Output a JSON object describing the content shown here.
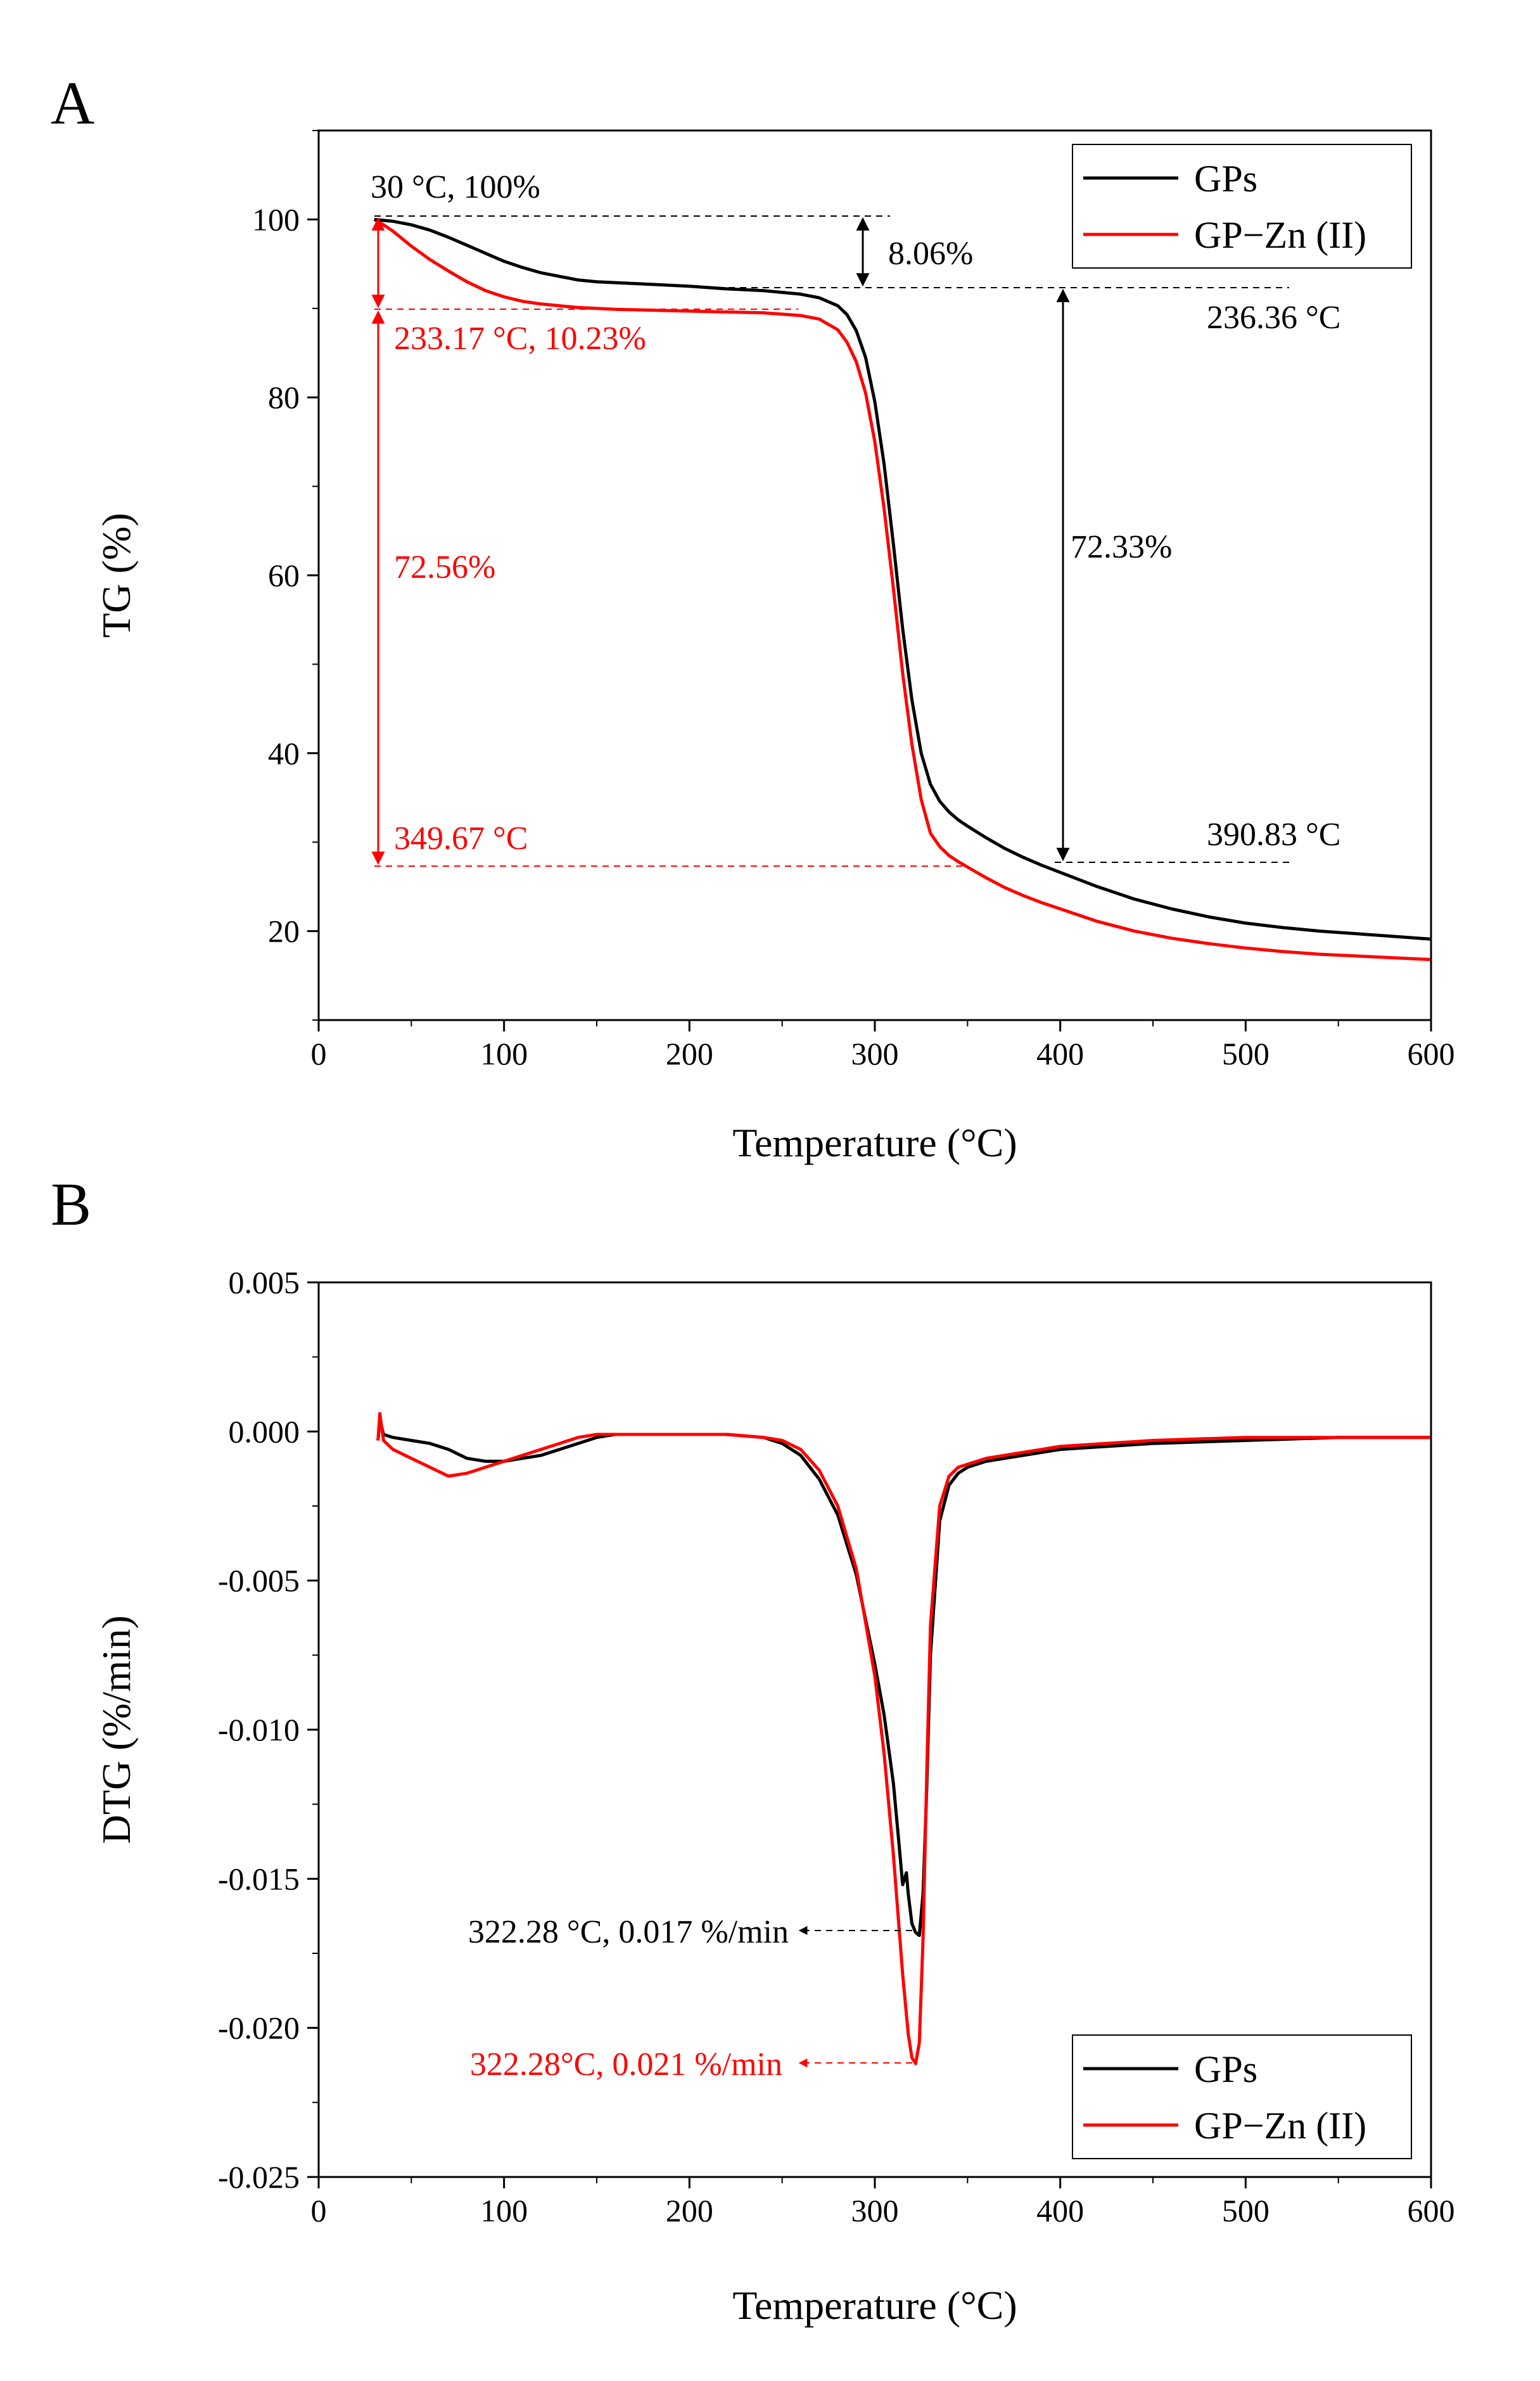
{
  "colors": {
    "gps": "#000000",
    "gpzn": "#ff0000"
  },
  "chart_data": [
    {
      "type": "line",
      "panel_label": "A",
      "xlabel": "Temperature (°C)",
      "ylabel": "TG (%)",
      "xlim": [
        0,
        600
      ],
      "ylim": [
        10,
        110
      ],
      "xticks": [
        0,
        100,
        200,
        300,
        400,
        500,
        600
      ],
      "yticks": [
        20,
        40,
        60,
        80,
        100
      ],
      "legend": {
        "position": "top-right",
        "entries": [
          "GPs",
          "GP−Zn (II)"
        ]
      },
      "series": [
        {
          "name": "GPs",
          "color": "#000000",
          "x": [
            30,
            40,
            50,
            60,
            70,
            80,
            90,
            100,
            110,
            120,
            130,
            140,
            150,
            160,
            180,
            200,
            220,
            240,
            260,
            270,
            280,
            285,
            290,
            295,
            300,
            305,
            310,
            315,
            320,
            325,
            330,
            335,
            340,
            345,
            350,
            360,
            370,
            380,
            390,
            400,
            420,
            440,
            460,
            480,
            500,
            520,
            540,
            560,
            580,
            600
          ],
          "y": [
            100,
            99.8,
            99.4,
            98.8,
            98.0,
            97.1,
            96.2,
            95.3,
            94.6,
            94.0,
            93.6,
            93.2,
            93.0,
            92.9,
            92.7,
            92.5,
            92.2,
            92.0,
            91.6,
            91.2,
            90.3,
            89.3,
            87.5,
            84.5,
            79.5,
            72.5,
            63.5,
            54.0,
            46.0,
            40.0,
            36.5,
            34.6,
            33.4,
            32.5,
            31.8,
            30.5,
            29.3,
            28.3,
            27.4,
            26.6,
            25.0,
            23.6,
            22.5,
            21.6,
            20.9,
            20.4,
            20.0,
            19.7,
            19.4,
            19.1
          ]
        },
        {
          "name": "GP−Zn (II)",
          "color": "#ff0000",
          "x": [
            30,
            35,
            40,
            50,
            60,
            70,
            80,
            90,
            100,
            110,
            120,
            130,
            140,
            150,
            160,
            180,
            200,
            220,
            240,
            260,
            270,
            280,
            285,
            290,
            295,
            300,
            305,
            310,
            315,
            320,
            325,
            330,
            335,
            340,
            345,
            350,
            360,
            370,
            380,
            390,
            400,
            420,
            440,
            460,
            480,
            500,
            520,
            540,
            560,
            580,
            600
          ],
          "y": [
            100,
            99.4,
            98.7,
            97.0,
            95.5,
            94.2,
            93.0,
            92.0,
            91.3,
            90.8,
            90.5,
            90.3,
            90.1,
            90.0,
            89.9,
            89.8,
            89.7,
            89.6,
            89.5,
            89.2,
            88.8,
            87.6,
            86.2,
            84.0,
            80.5,
            75.0,
            67.5,
            58.5,
            49.0,
            41.0,
            34.8,
            31.0,
            29.5,
            28.5,
            27.8,
            27.2,
            26.0,
            24.9,
            24.0,
            23.2,
            22.5,
            21.1,
            20.0,
            19.2,
            18.6,
            18.1,
            17.7,
            17.4,
            17.2,
            17.0,
            16.8
          ]
        }
      ],
      "annotations": [
        {
          "text": "30 °C, 100%",
          "color": "#000000"
        },
        {
          "text": "8.06%",
          "color": "#000000"
        },
        {
          "text": "236.36 °C",
          "color": "#000000"
        },
        {
          "text": "72.33%",
          "color": "#000000"
        },
        {
          "text": "390.83 °C",
          "color": "#000000"
        },
        {
          "text": "233.17 °C, 10.23%",
          "color": "#ff0000"
        },
        {
          "text": "72.56%",
          "color": "#ff0000"
        },
        {
          "text": "349.67 °C",
          "color": "#ff0000"
        }
      ]
    },
    {
      "type": "line",
      "panel_label": "B",
      "xlabel": "Temperature (°C)",
      "ylabel": "DTG (%/min)",
      "xlim": [
        0,
        600
      ],
      "ylim": [
        -0.025,
        0.005
      ],
      "xticks": [
        0,
        100,
        200,
        300,
        400,
        500,
        600
      ],
      "yticks": [
        0.005,
        0.0,
        -0.005,
        -0.01,
        -0.015,
        -0.02,
        -0.025
      ],
      "ytick_labels": [
        "0.005",
        "0.000",
        "-0.005",
        "-0.010",
        "-0.015",
        "-0.020",
        "-0.025"
      ],
      "legend": {
        "position": "bottom-right",
        "entries": [
          "GPs",
          "GP−Zn (II)"
        ]
      },
      "series": [
        {
          "name": "GPs",
          "color": "#000000",
          "x": [
            32,
            33,
            35,
            40,
            50,
            60,
            70,
            80,
            90,
            100,
            110,
            120,
            130,
            140,
            150,
            160,
            180,
            200,
            220,
            240,
            250,
            260,
            270,
            280,
            290,
            300,
            305,
            310,
            313,
            315,
            317,
            318,
            320,
            322,
            324,
            326,
            328,
            330,
            335,
            340,
            345,
            350,
            360,
            380,
            400,
            450,
            500,
            550,
            600
          ],
          "y": [
            -0.0003,
            0.0004,
            -0.0001,
            -0.0002,
            -0.0003,
            -0.0004,
            -0.0006,
            -0.0009,
            -0.001,
            -0.001,
            -0.0009,
            -0.0008,
            -0.0006,
            -0.0004,
            -0.0002,
            -0.0001,
            -0.0001,
            -0.0001,
            -0.0001,
            -0.0002,
            -0.0004,
            -0.0008,
            -0.0016,
            -0.0028,
            -0.0048,
            -0.0078,
            -0.0095,
            -0.0118,
            -0.0138,
            -0.0152,
            -0.0148,
            -0.0155,
            -0.0165,
            -0.0168,
            -0.0169,
            -0.0155,
            -0.012,
            -0.0075,
            -0.003,
            -0.0018,
            -0.0014,
            -0.0012,
            -0.001,
            -0.0008,
            -0.0006,
            -0.0004,
            -0.0003,
            -0.0002,
            -0.0002
          ]
        },
        {
          "name": "GP−Zn (II)",
          "color": "#ff0000",
          "x": [
            32,
            33,
            35,
            40,
            50,
            60,
            70,
            80,
            90,
            100,
            110,
            120,
            130,
            140,
            150,
            160,
            180,
            200,
            220,
            240,
            250,
            260,
            270,
            280,
            290,
            300,
            305,
            310,
            315,
            318,
            320,
            322,
            324,
            326,
            328,
            330,
            335,
            340,
            345,
            350,
            360,
            380,
            400,
            450,
            500,
            550,
            600
          ],
          "y": [
            -0.0003,
            0.0006,
            -0.0003,
            -0.0006,
            -0.0009,
            -0.0012,
            -0.0015,
            -0.0014,
            -0.0012,
            -0.001,
            -0.0008,
            -0.0006,
            -0.0004,
            -0.0002,
            -0.0001,
            -0.0001,
            -0.0001,
            -0.0001,
            -0.0001,
            -0.0002,
            -0.0003,
            -0.0006,
            -0.0013,
            -0.0025,
            -0.0046,
            -0.0082,
            -0.0108,
            -0.0142,
            -0.0182,
            -0.0202,
            -0.021,
            -0.0212,
            -0.0205,
            -0.017,
            -0.0115,
            -0.0065,
            -0.0025,
            -0.0015,
            -0.0012,
            -0.0011,
            -0.0009,
            -0.0007,
            -0.0005,
            -0.0003,
            -0.0002,
            -0.0002,
            -0.0002
          ]
        }
      ],
      "annotations": [
        {
          "text": "322.28 °C, 0.017 %/min",
          "color": "#000000"
        },
        {
          "text": "322.28°C, 0.021 %/min",
          "color": "#ff0000"
        }
      ]
    }
  ]
}
